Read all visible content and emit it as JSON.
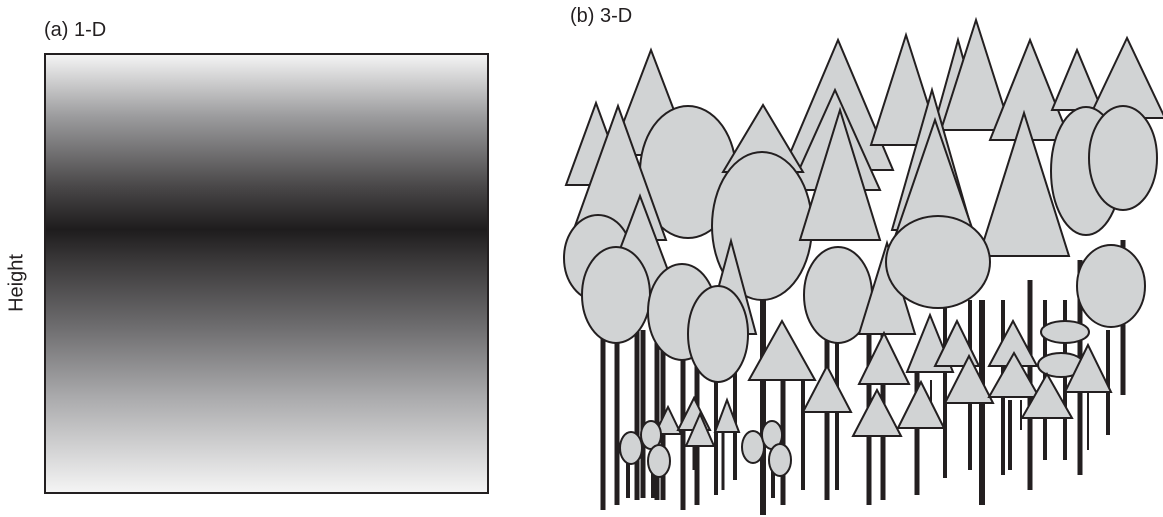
{
  "panels": {
    "a": {
      "title": "(a) 1-D",
      "axis_label": "Height"
    },
    "b": {
      "title": "(b) 3-D"
    }
  },
  "colors": {
    "stroke": "#231f20",
    "crown_fill": "#d1d3d4",
    "gradient_dark": "#1e1c1d",
    "gradient_light": "#f4f4f4"
  }
}
